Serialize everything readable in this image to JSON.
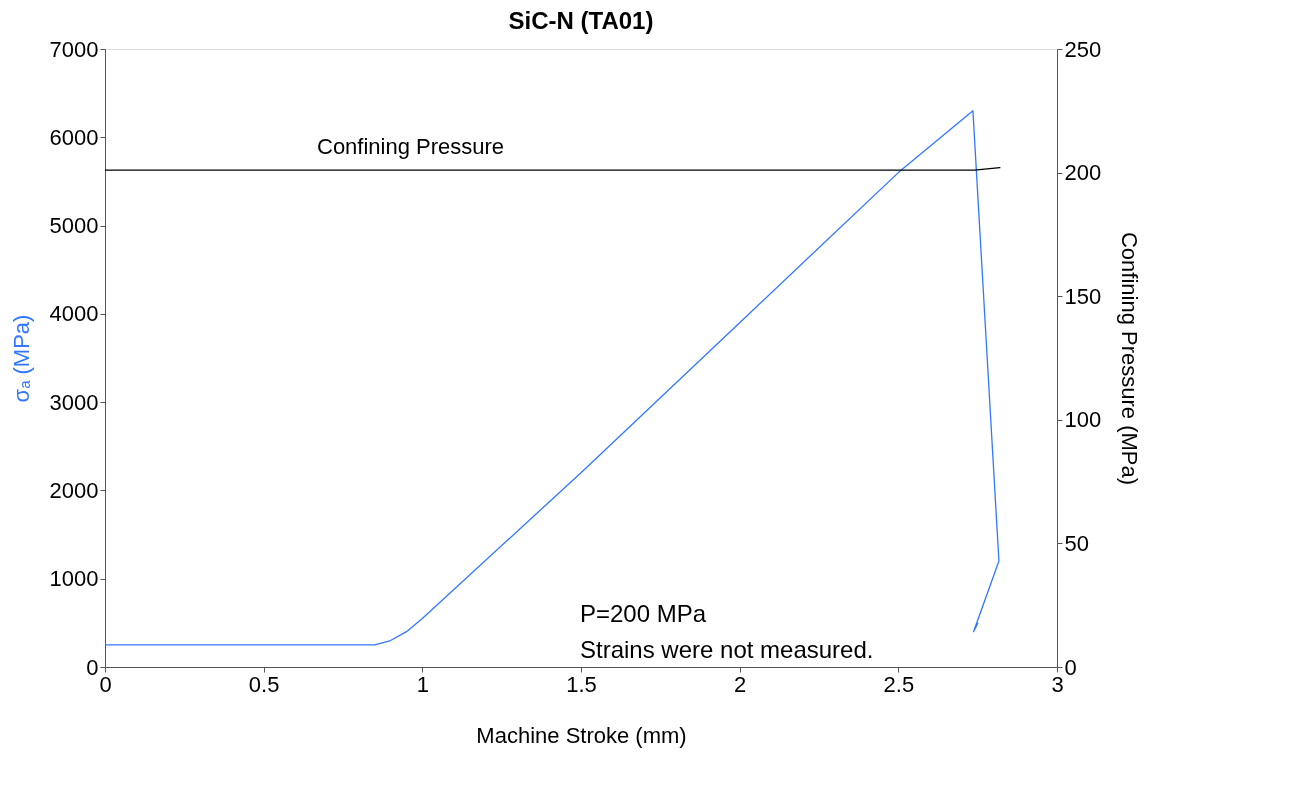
{
  "chart_data": {
    "type": "line",
    "title": "SiC-N (TA01)",
    "xlabel": "Machine Stroke (mm)",
    "ylabel": "σₐ (MPa)",
    "y2label": "Confining Pressure (MPa)",
    "xlim": [
      0,
      3
    ],
    "xticks": [
      0,
      0.5,
      1,
      1.5,
      2,
      2.5,
      3
    ],
    "ylim": [
      0,
      7000
    ],
    "yticks": [
      0,
      1000,
      2000,
      3000,
      4000,
      5000,
      6000,
      7000
    ],
    "y2lim": [
      0,
      250
    ],
    "y2ticks": [
      0,
      50,
      100,
      150,
      200,
      250
    ],
    "grid": false,
    "marker": "none",
    "line_style": "solid",
    "annotations": [
      "P=200 MPa",
      "Strains were not measured."
    ],
    "series": [
      {
        "color": "#3377ff",
        "x": [
          0,
          0.5,
          0.85,
          0.9,
          0.95,
          1.0,
          1.5,
          2.0,
          2.5,
          2.735,
          2.817,
          2.737,
          2.751
        ],
        "values": [
          250,
          250,
          250,
          300,
          400,
          550,
          2200,
          3900,
          5600,
          6300,
          1200,
          400,
          500
        ]
      },
      {
        "name": "Confining Pressure",
        "color": "#000000",
        "axis": "y2",
        "x": [
          0,
          2.74,
          2.82,
          2.74
        ],
        "values": [
          201,
          201,
          202,
          201
        ]
      }
    ]
  }
}
